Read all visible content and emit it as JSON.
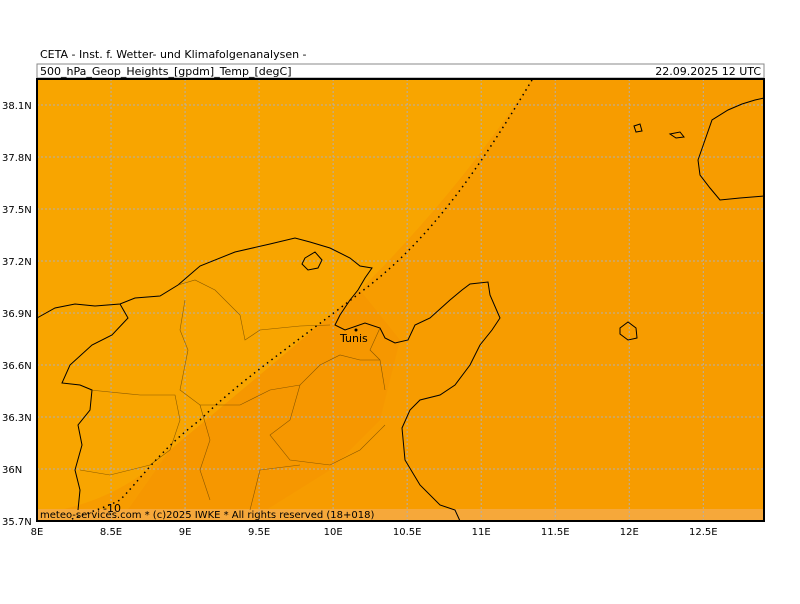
{
  "header": {
    "institute": "CETA  -  Inst. f. Wetter-  und Klimafolgenanalysen  -",
    "title": "500_hPa_Geop_Heights_[gpdm]_Temp_[degC]",
    "date": "22.09.2025 12 UTC"
  },
  "map": {
    "lon_range": [
      8,
      12.91
    ],
    "lat_range": [
      35.7,
      38.25
    ],
    "lat_ticks": [
      {
        "value": 38.1,
        "label": "38.1N"
      },
      {
        "value": 37.8,
        "label": "37.8N"
      },
      {
        "value": 37.5,
        "label": "37.5N"
      },
      {
        "value": 37.2,
        "label": "37.2N"
      },
      {
        "value": 36.9,
        "label": "36.9N"
      },
      {
        "value": 36.6,
        "label": "36.6N"
      },
      {
        "value": 36.3,
        "label": "36.3N"
      },
      {
        "value": 36,
        "label": "36N"
      },
      {
        "value": 35.7,
        "label": "35.7N"
      }
    ],
    "lon_ticks": [
      {
        "value": 8,
        "label": "8E"
      },
      {
        "value": 8.5,
        "label": "8.5E"
      },
      {
        "value": 9,
        "label": "9E"
      },
      {
        "value": 9.5,
        "label": "9.5E"
      },
      {
        "value": 10,
        "label": "10E"
      },
      {
        "value": 10.5,
        "label": "10.5E"
      },
      {
        "value": 11,
        "label": "11E"
      },
      {
        "value": 11.5,
        "label": "11.5E"
      },
      {
        "value": 12,
        "label": "12E"
      },
      {
        "value": 12.5,
        "label": "12.5E"
      }
    ],
    "city": "Tunis",
    "contour_label": "-10",
    "footer": "meteo-services.com * (c)2025 IWKE * All rights reserved (18+018)"
  }
}
